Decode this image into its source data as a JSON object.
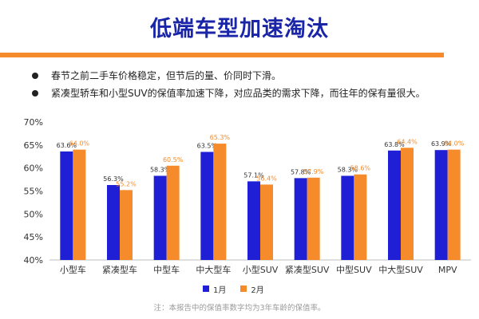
{
  "header": {
    "title": "低端车型加速淘汰"
  },
  "bullets": [
    "春节之前二手车价格稳定，但节后的量、价同时下滑。",
    "紧凑型轿车和小型SUV的保值率加速下降，对应品类的需求下降，而往年的保有量很大。"
  ],
  "note": "注：本报告中的保值率数字均为3年车龄的保值率。",
  "colors": {
    "title": "#1a25a8",
    "accent": "#f58b2b",
    "series_jan": "#1f1fd6",
    "series_feb": "#f58b2b"
  },
  "chart_data": {
    "type": "bar",
    "categories": [
      "小型车",
      "紧凑型车",
      "中型车",
      "中大型车",
      "小型SUV",
      "紧凑型SUV",
      "中型SUV",
      "中大型SUV",
      "MPV"
    ],
    "series": [
      {
        "name": "1月",
        "values": [
          63.6,
          56.3,
          58.3,
          63.5,
          57.1,
          57.8,
          58.3,
          63.8,
          63.9
        ],
        "labels": [
          "63.6%",
          "56.3%",
          "58.3%",
          "63.5%",
          "57.1%",
          "57.8%",
          "58.3%",
          "63.8%",
          "63.9%"
        ]
      },
      {
        "name": "2月",
        "values": [
          64.0,
          55.2,
          60.5,
          65.3,
          56.4,
          57.9,
          58.6,
          64.4,
          64.0
        ],
        "labels": [
          "64.0%",
          "55.2%",
          "60.5%",
          "65.3%",
          "56.4%",
          "57.9%",
          "58.6%",
          "64.4%",
          "64.0%"
        ]
      }
    ],
    "ylim": [
      40,
      70
    ],
    "yticks": [
      "40%",
      "45%",
      "50%",
      "55%",
      "60%",
      "65%",
      "70%"
    ],
    "grid": false,
    "legend_position": "bottom"
  }
}
